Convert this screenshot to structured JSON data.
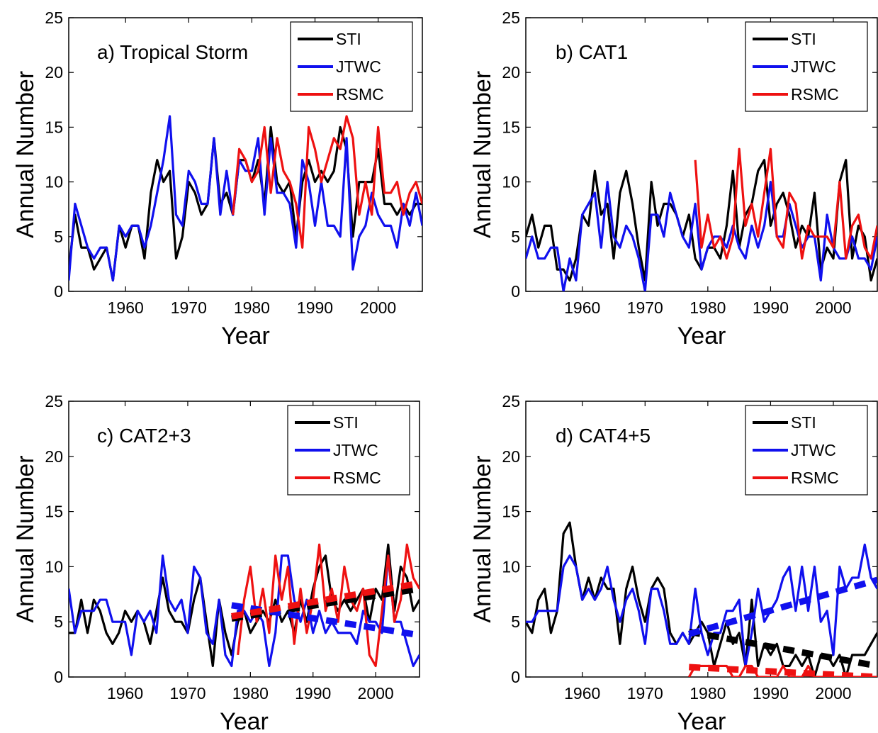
{
  "figure": {
    "colors": {
      "STI": "#000000",
      "JTWC": "#1010ee",
      "RSMC": "#ee1111"
    },
    "series_order": [
      "STI",
      "JTWC",
      "RSMC"
    ]
  },
  "chart_data": [
    {
      "type": "line",
      "title": "a) Tropical Storm",
      "xlabel": "Year",
      "ylabel": "Annual Number",
      "xlim": [
        1951,
        2007
      ],
      "ylim": [
        0,
        25
      ],
      "xticks": [
        1960,
        1970,
        1980,
        1990,
        2000
      ],
      "yticks": [
        0,
        5,
        10,
        15,
        20,
        25
      ],
      "legend": {
        "position": "top-right",
        "entries": [
          "STI",
          "JTWC",
          "RSMC"
        ]
      },
      "series": [
        {
          "name": "STI",
          "x_start": 1951,
          "values": [
            2,
            7,
            4,
            4,
            2,
            3,
            4,
            1,
            6,
            4,
            6,
            6,
            3,
            9,
            12,
            10,
            11,
            3,
            5,
            10,
            9,
            7,
            8,
            14,
            8,
            9,
            7,
            12,
            12,
            10,
            12,
            8,
            15,
            10,
            9,
            10,
            5,
            10,
            12,
            10,
            11,
            10,
            11,
            15,
            13,
            5,
            10,
            10,
            10,
            13,
            8,
            8,
            7,
            8,
            7,
            8,
            8
          ]
        },
        {
          "name": "JTWC",
          "x_start": 1951,
          "values": [
            1,
            8,
            6,
            4,
            3,
            4,
            4,
            1,
            6,
            5,
            6,
            6,
            4,
            6,
            9,
            12,
            16,
            7,
            6,
            11,
            10,
            8,
            8,
            14,
            7,
            11,
            7,
            12,
            11,
            11,
            14,
            7,
            14,
            9,
            9,
            8,
            4,
            12,
            10,
            6,
            10,
            6,
            6,
            5,
            14,
            2,
            5,
            6,
            9,
            7,
            6,
            6,
            4,
            8,
            6,
            9,
            6
          ]
        },
        {
          "name": "RSMC",
          "x_start": 1977,
          "values": [
            7,
            13,
            12,
            10,
            11,
            15,
            9,
            14,
            11,
            10,
            8,
            4,
            15,
            13,
            10,
            12,
            14,
            13,
            16,
            14,
            7,
            10,
            7,
            15,
            9,
            9,
            10,
            7,
            9,
            10,
            8
          ]
        }
      ]
    },
    {
      "type": "line",
      "title": "b) CAT1",
      "xlabel": "Year",
      "ylabel": "Annual Number",
      "xlim": [
        1951,
        2007
      ],
      "ylim": [
        0,
        25
      ],
      "xticks": [
        1960,
        1970,
        1980,
        1990,
        2000
      ],
      "yticks": [
        0,
        5,
        10,
        15,
        20,
        25
      ],
      "legend": {
        "position": "top-right",
        "entries": [
          "STI",
          "JTWC",
          "RSMC"
        ]
      },
      "series": [
        {
          "name": "STI",
          "x_start": 1951,
          "values": [
            5,
            7,
            4,
            6,
            6,
            2,
            2,
            1,
            3,
            7,
            6,
            11,
            7,
            8,
            3,
            9,
            11,
            8,
            4,
            1,
            10,
            6,
            8,
            8,
            7,
            5,
            7,
            3,
            2,
            4,
            4,
            3,
            6,
            11,
            4,
            7,
            8,
            11,
            12,
            6,
            8,
            9,
            7,
            4,
            6,
            5,
            9,
            2,
            4,
            3,
            10,
            12,
            3,
            6,
            5,
            1,
            3
          ]
        },
        {
          "name": "JTWC",
          "x_start": 1951,
          "values": [
            3,
            5,
            3,
            3,
            4,
            4,
            0,
            3,
            1,
            7,
            8,
            9,
            4,
            10,
            5,
            4,
            6,
            5,
            3,
            0,
            7,
            7,
            5,
            9,
            7,
            5,
            4,
            8,
            2,
            4,
            5,
            5,
            4,
            6,
            4,
            3,
            6,
            4,
            6,
            10,
            5,
            5,
            8,
            6,
            4,
            5,
            5,
            1,
            7,
            4,
            3,
            3,
            5,
            3,
            3,
            2,
            5
          ]
        },
        {
          "name": "RSMC",
          "x_start": 1978,
          "values": [
            12,
            4,
            7,
            4,
            5,
            3,
            5,
            13,
            6,
            8,
            5,
            9,
            13,
            5,
            4,
            9,
            8,
            3,
            6,
            5,
            5,
            5,
            4,
            10,
            3,
            6,
            7,
            4,
            3,
            6
          ]
        }
      ]
    },
    {
      "type": "line",
      "title": "c) CAT2+3",
      "xlabel": "Year",
      "ylabel": "Annual Number",
      "xlim": [
        1951,
        2007
      ],
      "ylim": [
        0,
        25
      ],
      "xticks": [
        1960,
        1970,
        1980,
        1990,
        2000
      ],
      "yticks": [
        0,
        5,
        10,
        15,
        20,
        25
      ],
      "legend": {
        "position": "top-right",
        "entries": [
          "STI",
          "JTWC",
          "RSMC"
        ]
      },
      "series": [
        {
          "name": "STI",
          "x_start": 1951,
          "values": [
            4,
            4,
            7,
            4,
            7,
            6,
            4,
            3,
            4,
            6,
            5,
            6,
            5,
            3,
            6,
            9,
            6,
            5,
            5,
            4,
            7,
            9,
            5,
            1,
            7,
            4,
            2,
            5,
            6,
            4,
            5,
            6,
            5,
            7,
            5,
            6,
            4,
            7,
            5,
            8,
            10,
            11,
            7,
            6,
            7,
            6,
            7,
            8,
            5,
            8,
            7,
            12,
            6,
            10,
            9,
            6,
            7
          ]
        },
        {
          "name": "JTWC",
          "x_start": 1951,
          "values": [
            8,
            4,
            6,
            6,
            6,
            7,
            7,
            5,
            5,
            5,
            2,
            6,
            5,
            6,
            4,
            11,
            7,
            6,
            7,
            4,
            10,
            9,
            4,
            3,
            7,
            2,
            1,
            6,
            6,
            5,
            6,
            5,
            1,
            4,
            11,
            11,
            7,
            5,
            7,
            4,
            6,
            4,
            5,
            4,
            4,
            4,
            3,
            6,
            5,
            5,
            4,
            11,
            5,
            5,
            3,
            1,
            2
          ]
        },
        {
          "name": "RSMC",
          "x_start": 1978,
          "values": [
            2,
            7,
            10,
            5,
            8,
            4,
            11,
            7,
            10,
            3,
            8,
            4,
            7,
            12,
            6,
            8,
            5,
            10,
            7,
            6,
            8,
            2,
            1,
            6,
            11,
            5,
            7,
            12,
            9,
            8
          ]
        },
        {
          "name": "",
          "role": "trend",
          "color_of": "STI",
          "x": [
            1977,
            2007
          ],
          "y": [
            5.3,
            8.0
          ]
        },
        {
          "name": "",
          "role": "trend",
          "color_of": "JTWC",
          "x": [
            1977,
            2007
          ],
          "y": [
            6.5,
            3.8
          ]
        },
        {
          "name": "",
          "role": "trend",
          "color_of": "RSMC",
          "x": [
            1977,
            2007
          ],
          "y": [
            5.5,
            8.5
          ]
        }
      ]
    },
    {
      "type": "line",
      "title": "d) CAT4+5",
      "xlabel": "Year",
      "ylabel": "Annual Number",
      "xlim": [
        1951,
        2007
      ],
      "ylim": [
        0,
        25
      ],
      "xticks": [
        1960,
        1970,
        1980,
        1990,
        2000
      ],
      "yticks": [
        0,
        5,
        10,
        15,
        20,
        25
      ],
      "legend": {
        "position": "top-right",
        "entries": [
          "STI",
          "JTWC",
          "RSMC"
        ]
      },
      "series": [
        {
          "name": "STI",
          "x_start": 1951,
          "values": [
            5,
            4,
            7,
            8,
            4,
            6,
            13,
            14,
            10,
            7,
            9,
            7,
            9,
            8,
            8,
            3,
            8,
            10,
            7,
            5,
            8,
            9,
            8,
            4,
            3,
            4,
            3,
            4,
            5,
            4,
            1,
            3,
            5,
            3,
            4,
            1,
            7,
            1,
            3,
            2,
            3,
            1,
            1,
            2,
            1,
            2,
            0,
            2,
            2,
            1,
            2,
            0,
            2,
            2,
            2,
            3,
            4
          ]
        },
        {
          "name": "JTWC",
          "x_start": 1951,
          "values": [
            5,
            5,
            6,
            6,
            6,
            6,
            10,
            11,
            10,
            7,
            8,
            7,
            8,
            10,
            7,
            5,
            7,
            8,
            6,
            3,
            8,
            8,
            6,
            3,
            3,
            4,
            3,
            8,
            4,
            2,
            4,
            4,
            6,
            6,
            7,
            1,
            4,
            8,
            5,
            6,
            7,
            9,
            10,
            6,
            10,
            6,
            10,
            5,
            6,
            2,
            10,
            8,
            9,
            9,
            12,
            9,
            8
          ]
        },
        {
          "name": "RSMC",
          "x_start": 1977,
          "values": [
            0,
            1,
            1,
            1,
            1,
            1,
            1,
            0,
            0,
            1,
            1,
            0,
            0,
            0,
            0,
            1,
            0,
            0,
            0,
            1,
            0,
            0,
            0,
            0,
            0,
            0,
            0,
            0,
            0,
            0,
            0
          ]
        },
        {
          "name": "",
          "role": "trend",
          "color_of": "STI",
          "x": [
            1977,
            2007
          ],
          "y": [
            4.1,
            1.0
          ]
        },
        {
          "name": "",
          "role": "trend",
          "color_of": "JTWC",
          "x": [
            1977,
            2007
          ],
          "y": [
            3.9,
            8.8
          ]
        },
        {
          "name": "",
          "role": "trend",
          "color_of": "RSMC",
          "x": [
            1977,
            2007
          ],
          "y": [
            0.9,
            0.0
          ]
        }
      ]
    }
  ]
}
